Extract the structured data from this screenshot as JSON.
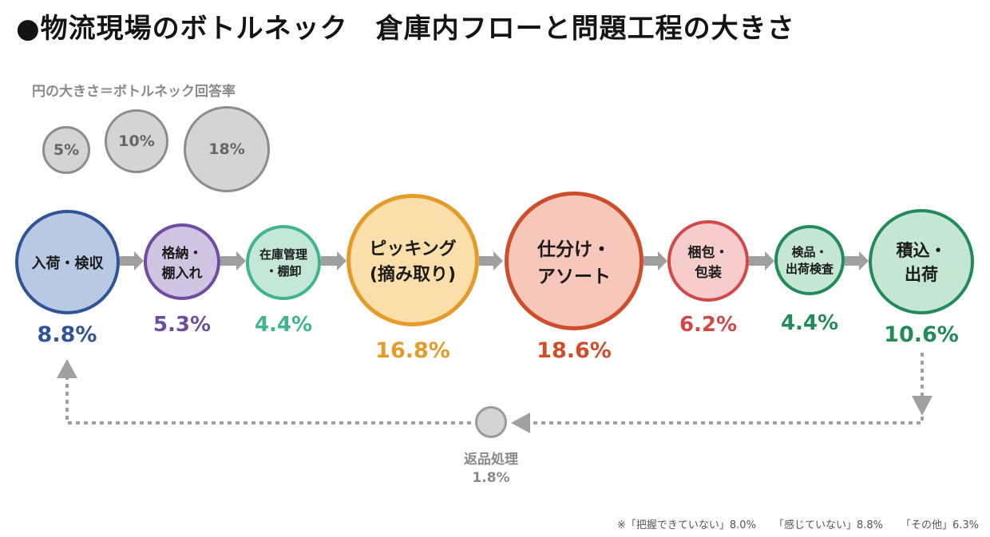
{
  "title": "●物流現場のボトルネック　倉庫内フローと問題工程の大きさ",
  "legend": {
    "caption": "円の大きさ＝ボトルネック回答率",
    "sizes": [
      "5%",
      "10%",
      "18%"
    ]
  },
  "stages": [
    {
      "line1": "入荷・検収",
      "line2": "",
      "percent": "8.8%",
      "color": "#2f5596",
      "fill": "#b9c9e4"
    },
    {
      "line1": "格納・",
      "line2": "棚入れ",
      "percent": "5.3%",
      "color": "#6e4c9e",
      "fill": "#cfc4e2"
    },
    {
      "line1": "在庫管理",
      "line2": "・棚卸",
      "percent": "4.4%",
      "color": "#41b38f",
      "fill": "#c3e8da"
    },
    {
      "line1": "ピッキング",
      "line2": "(摘み取り)",
      "percent": "16.8%",
      "color": "#e59b2a",
      "fill": "#fbdfaa"
    },
    {
      "line1": "仕分け・",
      "line2": "アソート",
      "percent": "18.6%",
      "color": "#cf4e2a",
      "fill": "#f6c7ba"
    },
    {
      "line1": "梱包・",
      "line2": "包装",
      "percent": "6.2%",
      "color": "#d24848",
      "fill": "#f7cccc"
    },
    {
      "line1": "検品・",
      "line2": "出荷検査",
      "percent": "4.4%",
      "color": "#238a5c",
      "fill": "#c5e6d3"
    },
    {
      "line1": "積込・",
      "line2": "出荷",
      "percent": "10.6%",
      "color": "#238a5c",
      "fill": "#c5e6d3"
    }
  ],
  "return": {
    "label": "返品処理",
    "percent": "1.8%"
  },
  "footnote": [
    "※「把握できていない」8.0%",
    "「感じていない」8.8%",
    "「その他」6.3%"
  ]
}
